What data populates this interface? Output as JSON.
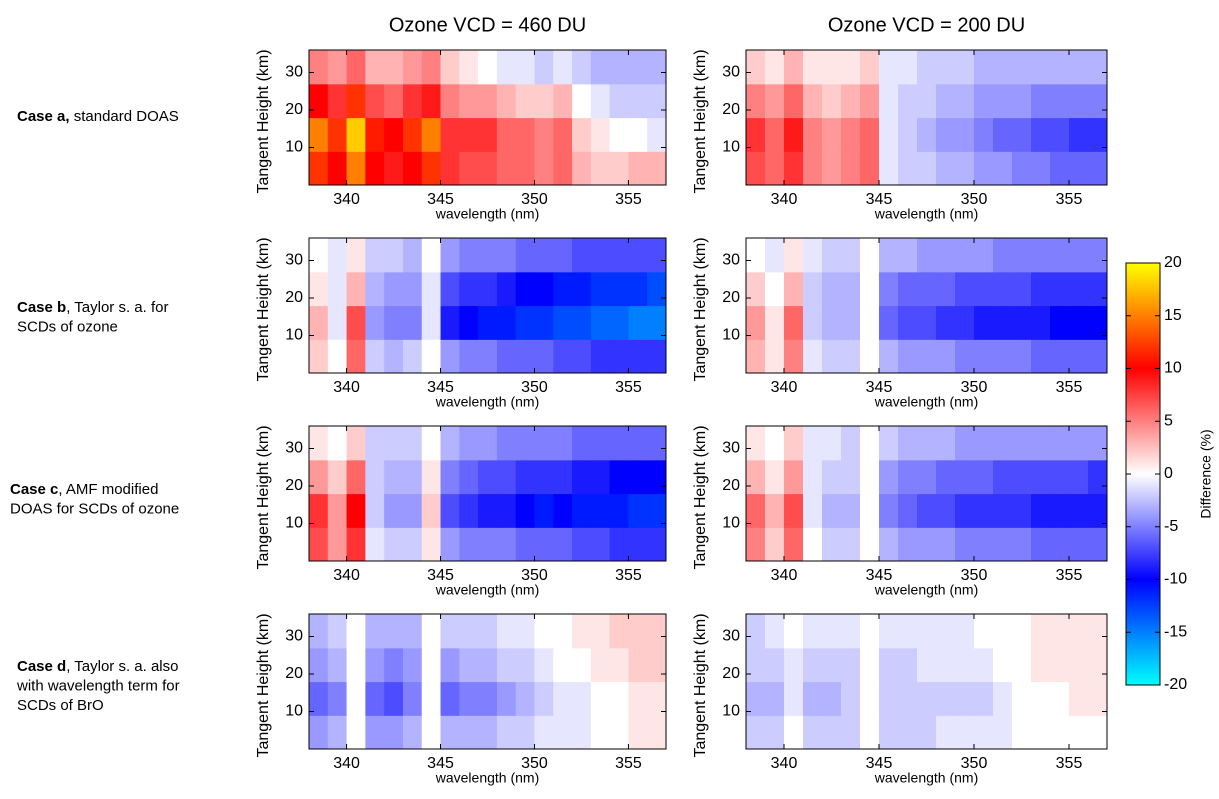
{
  "figure": {
    "column_titles": [
      "Ozone VCD = 460 DU",
      "Ozone VCD = 200 DU"
    ],
    "row_labels": [
      {
        "bold": "Case a,",
        "lines": [
          " standard DOAS"
        ]
      },
      {
        "bold": "Case b",
        "lines": [
          ", Taylor s. a. for",
          "SCDs of ozone"
        ]
      },
      {
        "bold": "Case c",
        "lines": [
          ", AMF modified",
          "DOAS for SCDs of ozone"
        ]
      },
      {
        "bold": "Case d",
        "lines": [
          ", Taylor s. a. also",
          "with wavelength term for",
          "SCDs of BrO"
        ]
      }
    ],
    "colorbar": {
      "label": "Difference (%)",
      "clim": [
        -20,
        20
      ],
      "cticks": [
        20,
        15,
        10,
        5,
        0,
        -5,
        -10,
        -15,
        -20
      ],
      "colormap": [
        [
          -20,
          "#00ffff"
        ],
        [
          -10,
          "#0000ff"
        ],
        [
          0,
          "#ffffff"
        ],
        [
          10,
          "#ff0000"
        ],
        [
          20,
          "#ffff00"
        ]
      ]
    }
  },
  "chart_data": [
    {
      "type": "heatmap",
      "xlabel": "wavelength (nm)",
      "ylabel": "Tangent Height (km)",
      "x": [
        338.5,
        339.5,
        340.5,
        341.5,
        342.5,
        343.5,
        344.5,
        345.5,
        346.5,
        347.5,
        348.5,
        349.5,
        350.5,
        351.5,
        352.5,
        353.5,
        354.5,
        355.5,
        356.5
      ],
      "y": [
        4.5,
        13.5,
        22.5,
        31.5
      ],
      "xlim": [
        338,
        357
      ],
      "ylim": [
        0,
        36
      ],
      "xticks": [
        340,
        345,
        350,
        355
      ],
      "yticks": [
        10,
        20,
        30
      ],
      "z": [
        [
          12,
          10,
          15,
          10,
          9,
          10,
          12,
          8,
          7,
          7,
          6,
          6,
          5,
          6,
          3,
          2,
          2,
          3,
          3
        ],
        [
          15,
          12,
          18,
          11,
          10,
          12,
          15,
          8,
          8,
          8,
          6,
          6,
          5,
          6,
          2,
          1,
          0,
          0,
          -1
        ],
        [
          10,
          8,
          12,
          7,
          6,
          8,
          9,
          5,
          4,
          4,
          3,
          2,
          2,
          3,
          0,
          -1,
          -2,
          -2,
          -2
        ],
        [
          5,
          4,
          6,
          3,
          3,
          4,
          5,
          2,
          1,
          0,
          -1,
          -1,
          -2,
          -1,
          -2,
          -3,
          -3,
          -3,
          -3
        ]
      ]
    },
    {
      "type": "heatmap",
      "xlabel": "wavelength (nm)",
      "ylabel": "Tangent Height (km)",
      "x": [
        338.5,
        339.5,
        340.5,
        341.5,
        342.5,
        343.5,
        344.5,
        345.5,
        346.5,
        347.5,
        348.5,
        349.5,
        350.5,
        351.5,
        352.5,
        353.5,
        354.5,
        355.5,
        356.5
      ],
      "y": [
        4.5,
        13.5,
        22.5,
        31.5
      ],
      "xlim": [
        338,
        357
      ],
      "ylim": [
        0,
        36
      ],
      "xticks": [
        340,
        345,
        350,
        355
      ],
      "yticks": [
        10,
        20,
        30
      ],
      "z": [
        [
          7,
          6,
          8,
          5,
          4,
          5,
          6,
          -1,
          -2,
          -2,
          -3,
          -3,
          -4,
          -4,
          -5,
          -5,
          -6,
          -6,
          -6
        ],
        [
          8,
          6,
          9,
          5,
          4,
          5,
          6,
          -1,
          -2,
          -3,
          -4,
          -4,
          -5,
          -6,
          -6,
          -7,
          -7,
          -8,
          -8
        ],
        [
          5,
          4,
          6,
          3,
          2,
          3,
          4,
          -1,
          -2,
          -2,
          -3,
          -3,
          -4,
          -4,
          -4,
          -5,
          -5,
          -5,
          -5
        ],
        [
          2,
          1,
          3,
          1,
          1,
          1,
          2,
          -1,
          -1,
          -2,
          -2,
          -2,
          -3,
          -3,
          -3,
          -3,
          -3,
          -3,
          -3
        ]
      ]
    },
    {
      "type": "heatmap",
      "xlabel": "wavelength (nm)",
      "ylabel": "Tangent Height (km)",
      "x": [
        338.5,
        339.5,
        340.5,
        341.5,
        342.5,
        343.5,
        344.5,
        345.5,
        346.5,
        347.5,
        348.5,
        349.5,
        350.5,
        351.5,
        352.5,
        353.5,
        354.5,
        355.5,
        356.5
      ],
      "y": [
        4.5,
        13.5,
        22.5,
        31.5
      ],
      "xlim": [
        338,
        357
      ],
      "ylim": [
        0,
        36
      ],
      "xticks": [
        340,
        345,
        350,
        355
      ],
      "yticks": [
        10,
        20,
        30
      ],
      "z": [
        [
          2,
          0,
          6,
          -2,
          -3,
          -2,
          0,
          -4,
          -5,
          -5,
          -6,
          -6,
          -6,
          -7,
          -7,
          -8,
          -8,
          -8,
          -8
        ],
        [
          3,
          -1,
          7,
          -4,
          -5,
          -5,
          -1,
          -9,
          -10,
          -11,
          -11,
          -12,
          -12,
          -13,
          -13,
          -14,
          -14,
          -15,
          -15
        ],
        [
          1,
          -1,
          3,
          -3,
          -4,
          -4,
          -1,
          -7,
          -8,
          -8,
          -9,
          -10,
          -10,
          -11,
          -11,
          -12,
          -12,
          -12,
          -13
        ],
        [
          0,
          -1,
          1,
          -2,
          -2,
          -3,
          0,
          -4,
          -5,
          -5,
          -5,
          -6,
          -6,
          -6,
          -7,
          -7,
          -7,
          -7,
          -7
        ]
      ]
    },
    {
      "type": "heatmap",
      "xlabel": "wavelength (nm)",
      "ylabel": "Tangent Height (km)",
      "x": [
        338.5,
        339.5,
        340.5,
        341.5,
        342.5,
        343.5,
        344.5,
        345.5,
        346.5,
        347.5,
        348.5,
        349.5,
        350.5,
        351.5,
        352.5,
        353.5,
        354.5,
        355.5,
        356.5
      ],
      "y": [
        4.5,
        13.5,
        22.5,
        31.5
      ],
      "xlim": [
        338,
        357
      ],
      "ylim": [
        0,
        36
      ],
      "xticks": [
        340,
        345,
        350,
        355
      ],
      "yticks": [
        10,
        20,
        30
      ],
      "z": [
        [
          3,
          1,
          5,
          -1,
          -2,
          -2,
          0,
          -3,
          -4,
          -4,
          -4,
          -5,
          -5,
          -5,
          -5,
          -6,
          -6,
          -6,
          -6
        ],
        [
          4,
          1,
          6,
          -2,
          -3,
          -3,
          0,
          -6,
          -7,
          -7,
          -8,
          -8,
          -9,
          -9,
          -9,
          -9,
          -10,
          -10,
          -10
        ],
        [
          2,
          0,
          3,
          -2,
          -3,
          -3,
          0,
          -5,
          -6,
          -6,
          -6,
          -7,
          -7,
          -7,
          -7,
          -8,
          -8,
          -8,
          -8
        ],
        [
          0,
          -1,
          1,
          -1,
          -2,
          -2,
          0,
          -3,
          -3,
          -4,
          -4,
          -4,
          -4,
          -5,
          -5,
          -5,
          -5,
          -5,
          -5
        ]
      ]
    },
    {
      "type": "heatmap",
      "xlabel": "wavelength (nm)",
      "ylabel": "Tangent Height (km)",
      "x": [
        338.5,
        339.5,
        340.5,
        341.5,
        342.5,
        343.5,
        344.5,
        345.5,
        346.5,
        347.5,
        348.5,
        349.5,
        350.5,
        351.5,
        352.5,
        353.5,
        354.5,
        355.5,
        356.5
      ],
      "y": [
        4.5,
        13.5,
        22.5,
        31.5
      ],
      "xlim": [
        338,
        357
      ],
      "ylim": [
        0,
        36
      ],
      "xticks": [
        340,
        345,
        350,
        355
      ],
      "yticks": [
        10,
        20,
        30
      ],
      "z": [
        [
          7,
          4,
          8,
          -1,
          -2,
          -2,
          1,
          -4,
          -5,
          -5,
          -5,
          -6,
          -6,
          -6,
          -7,
          -7,
          -8,
          -8,
          -8
        ],
        [
          8,
          4,
          10,
          -2,
          -4,
          -4,
          2,
          -7,
          -8,
          -9,
          -9,
          -10,
          -11,
          -10,
          -11,
          -11,
          -11,
          -12,
          -12
        ],
        [
          4,
          2,
          6,
          -2,
          -3,
          -3,
          1,
          -5,
          -6,
          -7,
          -7,
          -8,
          -8,
          -8,
          -9,
          -9,
          -10,
          -10,
          -10
        ],
        [
          1,
          0,
          2,
          -2,
          -2,
          -2,
          0,
          -3,
          -4,
          -4,
          -5,
          -5,
          -5,
          -5,
          -6,
          -6,
          -6,
          -6,
          -6
        ]
      ]
    },
    {
      "type": "heatmap",
      "xlabel": "wavelength (nm)",
      "ylabel": "Tangent Height (km)",
      "x": [
        338.5,
        339.5,
        340.5,
        341.5,
        342.5,
        343.5,
        344.5,
        345.5,
        346.5,
        347.5,
        348.5,
        349.5,
        350.5,
        351.5,
        352.5,
        353.5,
        354.5,
        355.5,
        356.5
      ],
      "y": [
        4.5,
        13.5,
        22.5,
        31.5
      ],
      "xlim": [
        338,
        357
      ],
      "ylim": [
        0,
        36
      ],
      "xticks": [
        340,
        345,
        350,
        355
      ],
      "yticks": [
        10,
        20,
        30
      ],
      "z": [
        [
          5,
          2,
          6,
          0,
          -2,
          -2,
          0,
          -3,
          -4,
          -4,
          -4,
          -5,
          -5,
          -5,
          -5,
          -6,
          -6,
          -6,
          -6
        ],
        [
          6,
          3,
          7,
          -1,
          -3,
          -3,
          0,
          -5,
          -6,
          -7,
          -7,
          -8,
          -8,
          -8,
          -8,
          -9,
          -9,
          -9,
          -9
        ],
        [
          3,
          1,
          4,
          -1,
          -2,
          -2,
          0,
          -4,
          -5,
          -5,
          -6,
          -6,
          -6,
          -7,
          -7,
          -7,
          -7,
          -7,
          -8
        ],
        [
          1,
          0,
          2,
          -1,
          -1,
          -2,
          0,
          -2,
          -3,
          -3,
          -3,
          -4,
          -4,
          -4,
          -4,
          -4,
          -4,
          -4,
          -4
        ]
      ]
    },
    {
      "type": "heatmap",
      "xlabel": "wavelength (nm)",
      "ylabel": "Tangent Height (km)",
      "x": [
        338.5,
        339.5,
        340.5,
        341.5,
        342.5,
        343.5,
        344.5,
        345.5,
        346.5,
        347.5,
        348.5,
        349.5,
        350.5,
        351.5,
        352.5,
        353.5,
        354.5,
        355.5,
        356.5
      ],
      "y": [
        4.5,
        13.5,
        22.5,
        31.5
      ],
      "xlim": [
        338,
        357
      ],
      "ylim": [
        0,
        36
      ],
      "xticks": [
        340,
        345,
        350,
        355
      ],
      "yticks": [
        10,
        20,
        30
      ],
      "z": [
        [
          -4,
          -3,
          0,
          -4,
          -4,
          -3,
          0,
          -3,
          -3,
          -3,
          -2,
          -2,
          -1,
          -1,
          -1,
          0,
          0,
          1,
          1
        ],
        [
          -6,
          -5,
          0,
          -6,
          -7,
          -5,
          0,
          -6,
          -5,
          -5,
          -4,
          -3,
          -2,
          -1,
          -1,
          0,
          0,
          1,
          1
        ],
        [
          -4,
          -3,
          0,
          -4,
          -5,
          -4,
          0,
          -4,
          -3,
          -3,
          -2,
          -2,
          -1,
          0,
          0,
          1,
          1,
          2,
          2
        ],
        [
          -3,
          -2,
          0,
          -3,
          -3,
          -3,
          0,
          -2,
          -2,
          -2,
          -1,
          -1,
          0,
          0,
          1,
          1,
          2,
          2,
          2
        ]
      ]
    },
    {
      "type": "heatmap",
      "xlabel": "wavelength (nm)",
      "ylabel": "Tangent Height (km)",
      "x": [
        338.5,
        339.5,
        340.5,
        341.5,
        342.5,
        343.5,
        344.5,
        345.5,
        346.5,
        347.5,
        348.5,
        349.5,
        350.5,
        351.5,
        352.5,
        353.5,
        354.5,
        355.5,
        356.5
      ],
      "y": [
        4.5,
        13.5,
        22.5,
        31.5
      ],
      "xlim": [
        338,
        357
      ],
      "ylim": [
        0,
        36
      ],
      "xticks": [
        340,
        345,
        350,
        355
      ],
      "yticks": [
        10,
        20,
        30
      ],
      "z": [
        [
          -2,
          -2,
          0,
          -2,
          -2,
          -2,
          0,
          -2,
          -2,
          -2,
          -1,
          -1,
          -1,
          -1,
          0,
          0,
          0,
          0,
          0
        ],
        [
          -3,
          -3,
          -1,
          -3,
          -3,
          -2,
          0,
          -2,
          -2,
          -2,
          -2,
          -2,
          -2,
          -1,
          0,
          0,
          0,
          1,
          1
        ],
        [
          -2,
          -2,
          -1,
          -2,
          -2,
          -2,
          0,
          -2,
          -2,
          -1,
          -1,
          -1,
          -1,
          0,
          0,
          1,
          1,
          1,
          1
        ],
        [
          -2,
          -1,
          0,
          -1,
          -1,
          -1,
          0,
          -1,
          -1,
          -1,
          -1,
          -1,
          0,
          0,
          0,
          1,
          1,
          1,
          1
        ]
      ]
    }
  ]
}
